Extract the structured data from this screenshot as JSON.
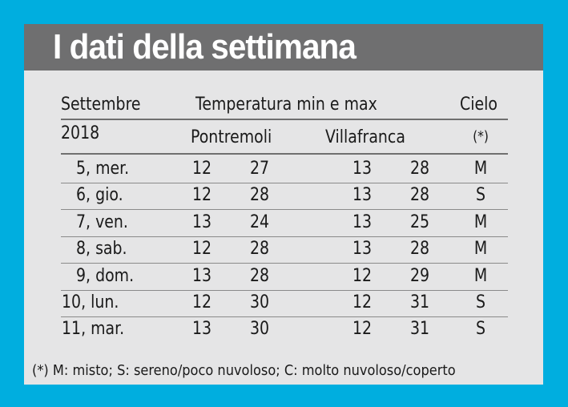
{
  "title": "I dati della settimana",
  "header": {
    "month": "Settembre",
    "temperature": "Temperatura min e max",
    "sky": "Cielo",
    "year": "2018",
    "pontremoli": "Pontremoli",
    "villafranca": "Villafranca",
    "sky_note": "(*)"
  },
  "rows": [
    {
      "day": "5, mer.",
      "pmin": "12",
      "pmax": "27",
      "vmin": "13",
      "vmax": "28",
      "sky": "M"
    },
    {
      "day": "6, gio.",
      "pmin": "12",
      "pmax": "28",
      "vmin": "13",
      "vmax": "28",
      "sky": "S"
    },
    {
      "day": "7, ven.",
      "pmin": "13",
      "pmax": "24",
      "vmin": "13",
      "vmax": "25",
      "sky": "M"
    },
    {
      "day": "8, sab.",
      "pmin": "12",
      "pmax": "28",
      "vmin": "13",
      "vmax": "28",
      "sky": "M"
    },
    {
      "day": "9, dom.",
      "pmin": "13",
      "pmax": "28",
      "vmin": "12",
      "vmax": "29",
      "sky": "M"
    },
    {
      "day": "10, lun.",
      "pmin": "12",
      "pmax": "30",
      "vmin": "12",
      "vmax": "31",
      "sky": "S"
    },
    {
      "day": "11, mar.",
      "pmin": "13",
      "pmax": "30",
      "vmin": "12",
      "vmax": "31",
      "sky": "S"
    }
  ],
  "footer": "(*) M: misto; S: sereno/poco nuvoloso; C: molto nuvoloso/coperto",
  "colors": {
    "background": "#00AEDF",
    "card": "#E5E5E6",
    "title_band": "#6F6F70"
  }
}
